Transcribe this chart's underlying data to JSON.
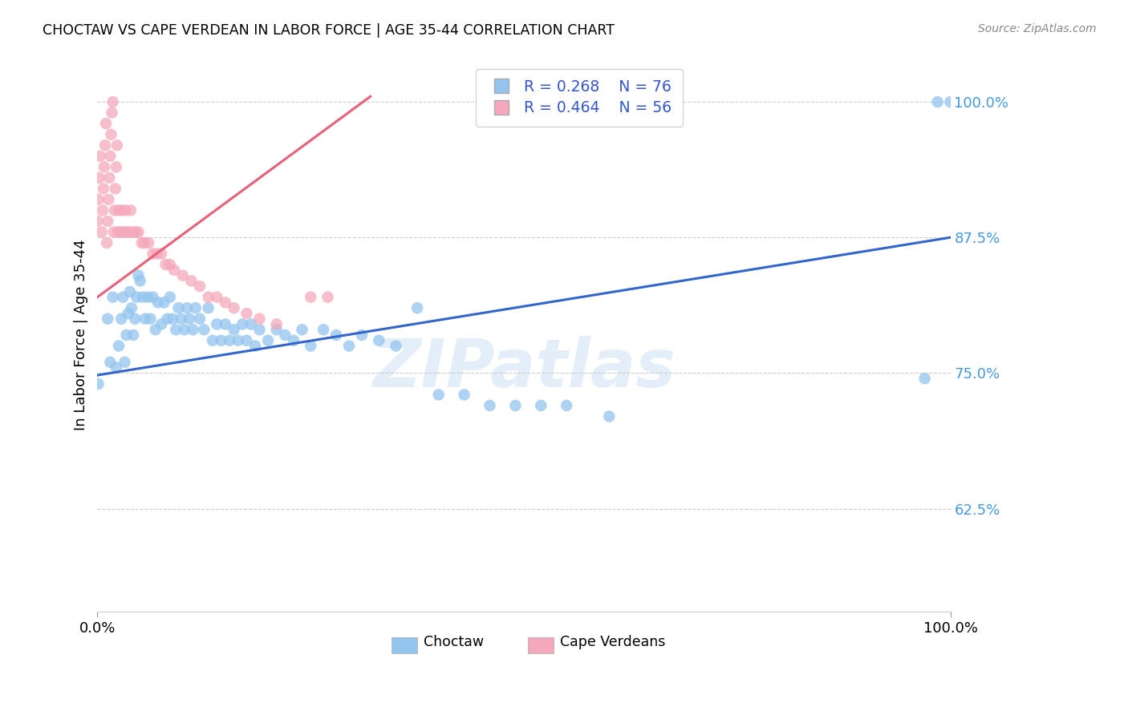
{
  "title": "CHOCTAW VS CAPE VERDEAN IN LABOR FORCE | AGE 35-44 CORRELATION CHART",
  "source": "Source: ZipAtlas.com",
  "ylabel": "In Labor Force | Age 35-44",
  "ytick_labels": [
    "62.5%",
    "75.0%",
    "87.5%",
    "100.0%"
  ],
  "ytick_values": [
    0.625,
    0.75,
    0.875,
    1.0
  ],
  "xlim": [
    0.0,
    1.0
  ],
  "ylim": [
    0.53,
    1.04
  ],
  "choctaw_color": "#92C4EE",
  "cape_color": "#F5A8BC",
  "choctaw_line_color": "#3366CC",
  "cape_line_color": "#E8607A",
  "legend_R_choctaw": "R = 0.268",
  "legend_N_choctaw": "N = 76",
  "legend_R_cape": "R = 0.464",
  "legend_N_cape": "N = 56",
  "watermark": "ZIPatlas",
  "choctaw_x": [
    0.001,
    0.012,
    0.015,
    0.018,
    0.022,
    0.025,
    0.028,
    0.03,
    0.032,
    0.034,
    0.036,
    0.038,
    0.04,
    0.042,
    0.044,
    0.046,
    0.048,
    0.05,
    0.053,
    0.056,
    0.059,
    0.062,
    0.065,
    0.068,
    0.071,
    0.075,
    0.078,
    0.082,
    0.085,
    0.088,
    0.092,
    0.095,
    0.098,
    0.102,
    0.105,
    0.108,
    0.112,
    0.115,
    0.12,
    0.125,
    0.13,
    0.135,
    0.14,
    0.145,
    0.15,
    0.155,
    0.16,
    0.165,
    0.17,
    0.175,
    0.18,
    0.185,
    0.19,
    0.2,
    0.21,
    0.22,
    0.23,
    0.24,
    0.25,
    0.265,
    0.28,
    0.295,
    0.31,
    0.33,
    0.35,
    0.375,
    0.4,
    0.43,
    0.46,
    0.49,
    0.52,
    0.55,
    0.6,
    0.97,
    0.985,
    1.0
  ],
  "choctaw_y": [
    0.74,
    0.8,
    0.76,
    0.82,
    0.755,
    0.775,
    0.8,
    0.82,
    0.76,
    0.785,
    0.805,
    0.825,
    0.81,
    0.785,
    0.8,
    0.82,
    0.84,
    0.835,
    0.82,
    0.8,
    0.82,
    0.8,
    0.82,
    0.79,
    0.815,
    0.795,
    0.815,
    0.8,
    0.82,
    0.8,
    0.79,
    0.81,
    0.8,
    0.79,
    0.81,
    0.8,
    0.79,
    0.81,
    0.8,
    0.79,
    0.81,
    0.78,
    0.795,
    0.78,
    0.795,
    0.78,
    0.79,
    0.78,
    0.795,
    0.78,
    0.795,
    0.775,
    0.79,
    0.78,
    0.79,
    0.785,
    0.78,
    0.79,
    0.775,
    0.79,
    0.785,
    0.775,
    0.785,
    0.78,
    0.775,
    0.81,
    0.73,
    0.73,
    0.72,
    0.72,
    0.72,
    0.72,
    0.71,
    0.745,
    1.0,
    1.0
  ],
  "cape_x": [
    0.0,
    0.001,
    0.002,
    0.003,
    0.005,
    0.006,
    0.007,
    0.008,
    0.009,
    0.01,
    0.011,
    0.012,
    0.013,
    0.014,
    0.015,
    0.016,
    0.017,
    0.018,
    0.019,
    0.02,
    0.021,
    0.022,
    0.023,
    0.024,
    0.025,
    0.027,
    0.029,
    0.031,
    0.033,
    0.035,
    0.037,
    0.039,
    0.042,
    0.045,
    0.048,
    0.052,
    0.055,
    0.06,
    0.065,
    0.07,
    0.075,
    0.08,
    0.085,
    0.09,
    0.1,
    0.11,
    0.12,
    0.13,
    0.14,
    0.15,
    0.16,
    0.175,
    0.19,
    0.21,
    0.25,
    0.27
  ],
  "cape_y": [
    0.89,
    0.91,
    0.93,
    0.95,
    0.88,
    0.9,
    0.92,
    0.94,
    0.96,
    0.98,
    0.87,
    0.89,
    0.91,
    0.93,
    0.95,
    0.97,
    0.99,
    1.0,
    0.88,
    0.9,
    0.92,
    0.94,
    0.96,
    0.88,
    0.9,
    0.88,
    0.9,
    0.88,
    0.9,
    0.88,
    0.88,
    0.9,
    0.88,
    0.88,
    0.88,
    0.87,
    0.87,
    0.87,
    0.86,
    0.86,
    0.86,
    0.85,
    0.85,
    0.845,
    0.84,
    0.835,
    0.83,
    0.82,
    0.82,
    0.815,
    0.81,
    0.805,
    0.8,
    0.795,
    0.82,
    0.82
  ],
  "choctaw_R": 0.268,
  "cape_R": 0.464,
  "blue_line_start_y": 0.748,
  "blue_line_end_y": 0.875,
  "pink_line_start_x": 0.0,
  "pink_line_start_y": 0.82,
  "pink_line_end_x": 0.32,
  "pink_line_end_y": 1.005
}
